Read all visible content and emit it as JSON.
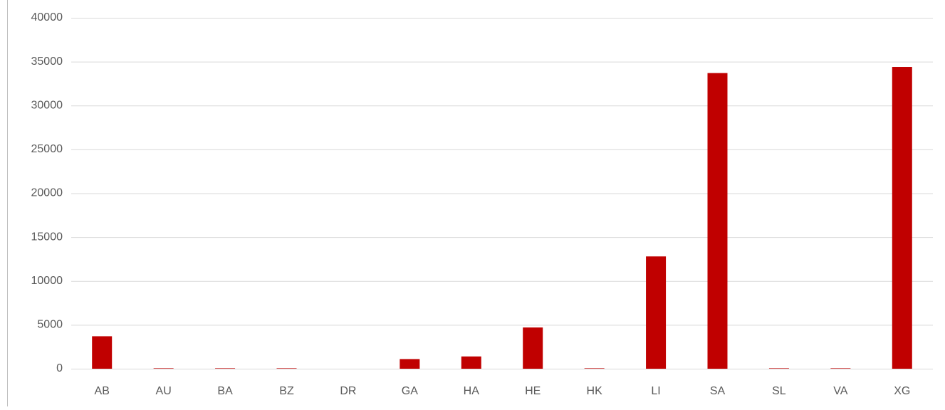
{
  "chart_data": {
    "type": "bar",
    "categories": [
      "AB",
      "AU",
      "BA",
      "BZ",
      "DR",
      "GA",
      "HA",
      "HE",
      "HK",
      "LI",
      "SA",
      "SL",
      "VA",
      "XG"
    ],
    "values": [
      3700,
      50,
      50,
      50,
      0,
      1100,
      1400,
      4700,
      50,
      12800,
      33700,
      50,
      50,
      34400
    ],
    "color": "#c00000",
    "ylim": [
      0,
      40000
    ],
    "yticks": [
      0,
      5000,
      10000,
      15000,
      20000,
      25000,
      30000,
      35000,
      40000
    ],
    "grid": true
  }
}
